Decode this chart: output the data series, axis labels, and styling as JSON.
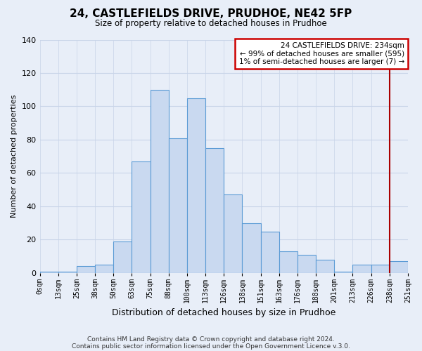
{
  "title": "24, CASTLEFIELDS DRIVE, PRUDHOE, NE42 5FP",
  "subtitle": "Size of property relative to detached houses in Prudhoe",
  "xlabel": "Distribution of detached houses by size in Prudhoe",
  "ylabel": "Number of detached properties",
  "bin_labels": [
    "0sqm",
    "13sqm",
    "25sqm",
    "38sqm",
    "50sqm",
    "63sqm",
    "75sqm",
    "88sqm",
    "100sqm",
    "113sqm",
    "126sqm",
    "138sqm",
    "151sqm",
    "163sqm",
    "176sqm",
    "188sqm",
    "201sqm",
    "213sqm",
    "226sqm",
    "238sqm",
    "251sqm"
  ],
  "bar_heights": [
    1,
    1,
    4,
    5,
    19,
    67,
    110,
    81,
    105,
    75,
    47,
    30,
    25,
    13,
    11,
    8,
    1,
    5,
    5,
    7
  ],
  "bar_color": "#c9d9f0",
  "bar_edge_color": "#5b9bd5",
  "ylim": [
    0,
    140
  ],
  "yticks": [
    0,
    20,
    40,
    60,
    80,
    100,
    120,
    140
  ],
  "property_line_label_idx": 19,
  "property_line_color": "#aa0000",
  "legend_title": "24 CASTLEFIELDS DRIVE: 234sqm",
  "legend_line1": "← 99% of detached houses are smaller (595)",
  "legend_line2": "1% of semi-detached houses are larger (7) →",
  "legend_box_color": "#cc0000",
  "footer_line1": "Contains HM Land Registry data © Crown copyright and database right 2024.",
  "footer_line2": "Contains public sector information licensed under the Open Government Licence v.3.0.",
  "background_color": "#e8eef8",
  "grid_color": "#c8d4e8"
}
